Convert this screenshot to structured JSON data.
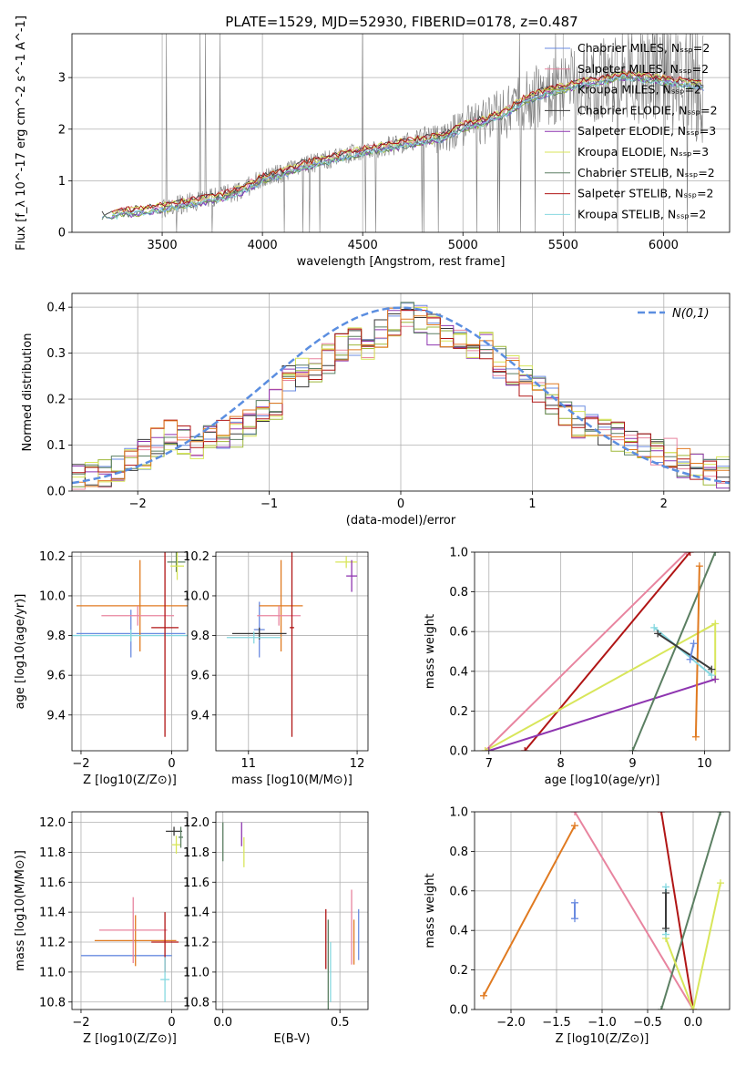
{
  "figure_title": "PLATE=1529, MJD=52930, FIBERID=0178, z=0.487",
  "colors": {
    "chabrier_miles": "#6a8be0",
    "salpeter_miles": "#e8849f",
    "kroupa_miles": "#9fb83a",
    "chabrier_elodie": "#3a3a3a",
    "salpeter_elodie": "#8e35b0",
    "kroupa_elodie": "#d8e65a",
    "chabrier_stelib": "#5b7f62",
    "salpeter_stelib": "#b01515",
    "kroupa_stelib": "#86d8e0",
    "orange_fit": "#e07a20",
    "gaussian": "#5b8ee0",
    "grid": "#b0b0b0",
    "observed": "#7a7a7a"
  },
  "chart_data": [
    {
      "id": "spectrum",
      "type": "line",
      "xlabel": "wavelength [Angstrom, rest frame]",
      "ylabel": "Flux [f_λ 10^-17 erg cm^-2 s^-1 A^-1]",
      "xlim": [
        3050,
        6330
      ],
      "ylim": [
        0,
        3.85
      ],
      "xticks": [
        3500,
        4000,
        4500,
        5000,
        5500,
        6000
      ],
      "yticks": [
        0,
        1,
        2,
        3
      ],
      "legend_position": "top-right",
      "legend": [
        {
          "label": "Chabrier MILES, N_SSP=2",
          "color_key": "chabrier_miles"
        },
        {
          "label": "Salpeter MILES, N_SSP=2",
          "color_key": "salpeter_miles"
        },
        {
          "label": "Kroupa MILES, N_SSP=2",
          "color_key": "kroupa_miles"
        },
        {
          "label": "Chabrier ELODIE, N_SSP=2",
          "color_key": "chabrier_elodie"
        },
        {
          "label": "Salpeter ELODIE, N_SSP=3",
          "color_key": "salpeter_elodie"
        },
        {
          "label": "Kroupa ELODIE, N_SSP=3",
          "color_key": "kroupa_elodie"
        },
        {
          "label": "Chabrier STELIB, N_SSP=2",
          "color_key": "chabrier_stelib"
        },
        {
          "label": "Salpeter STELIB, N_SSP=2",
          "color_key": "salpeter_stelib"
        },
        {
          "label": "Kroupa STELIB, N_SSP=2",
          "color_key": "kroupa_stelib"
        }
      ],
      "model_continuum": {
        "x": [
          3200,
          3300,
          3400,
          3500,
          3600,
          3700,
          3800,
          3900,
          4000,
          4100,
          4200,
          4300,
          4400,
          4500,
          4600,
          4700,
          4800,
          4900,
          5000,
          5100,
          5200,
          5300,
          5400,
          5500,
          5600,
          5700,
          5800,
          5900,
          6000,
          6100,
          6200
        ],
        "y": [
          0.33,
          0.38,
          0.42,
          0.48,
          0.55,
          0.62,
          0.7,
          0.82,
          1.05,
          1.15,
          1.3,
          1.38,
          1.48,
          1.58,
          1.65,
          1.72,
          1.78,
          1.85,
          2.05,
          2.15,
          2.3,
          2.55,
          2.7,
          2.8,
          2.9,
          2.95,
          3.05,
          3.0,
          2.95,
          2.9,
          2.85
        ]
      },
      "observed_range": [
        3500,
        6200
      ]
    },
    {
      "id": "residuals",
      "type": "histogram",
      "xlabel": "(data-model)/error",
      "ylabel": "Normed distribution",
      "xlim": [
        -2.5,
        2.5
      ],
      "ylim": [
        0,
        0.43
      ],
      "xticks": [
        -2,
        -1,
        0,
        1,
        2
      ],
      "yticks": [
        0.0,
        0.1,
        0.2,
        0.3,
        0.4
      ],
      "legend": [
        {
          "label": "N(0,1)",
          "color_key": "gaussian",
          "style": "dashed"
        }
      ],
      "legend_position": "top-right",
      "bins": [
        -2.5,
        -2.4,
        -2.3,
        -2.2,
        -2.1,
        -2.0,
        -1.9,
        -1.8,
        -1.7,
        -1.6,
        -1.5,
        -1.4,
        -1.3,
        -1.2,
        -1.1,
        -1.0,
        -0.9,
        -0.8,
        -0.7,
        -0.6,
        -0.5,
        -0.4,
        -0.3,
        -0.2,
        -0.1,
        0.0,
        0.1,
        0.2,
        0.3,
        0.4,
        0.5,
        0.6,
        0.7,
        0.8,
        0.9,
        1.0,
        1.1,
        1.2,
        1.3,
        1.4,
        1.5,
        1.6,
        1.7,
        1.8,
        1.9,
        2.0,
        2.1,
        2.2,
        2.3,
        2.4,
        2.5
      ],
      "base_heights": [
        0.025,
        0.03,
        0.04,
        0.05,
        0.06,
        0.08,
        0.11,
        0.12,
        0.11,
        0.1,
        0.11,
        0.12,
        0.13,
        0.15,
        0.17,
        0.19,
        0.24,
        0.26,
        0.27,
        0.29,
        0.31,
        0.32,
        0.32,
        0.34,
        0.37,
        0.38,
        0.37,
        0.35,
        0.34,
        0.33,
        0.32,
        0.31,
        0.28,
        0.26,
        0.24,
        0.22,
        0.2,
        0.17,
        0.15,
        0.14,
        0.13,
        0.12,
        0.11,
        0.1,
        0.09,
        0.08,
        0.06,
        0.05,
        0.045,
        0.04
      ]
    },
    {
      "id": "age_vs_Z",
      "type": "errorbar",
      "xlabel": "Z [log10(Z/Z⊙)]",
      "ylabel": "age  [log10(age/yr)]",
      "xlim": [
        -2.2,
        0.35
      ],
      "ylim": [
        9.22,
        10.22
      ],
      "xticks": [
        -2,
        0
      ],
      "yticks": [
        9.4,
        9.6,
        9.8,
        10.0,
        10.2
      ],
      "points": [
        {
          "x": -0.9,
          "xerr": 1.2,
          "y": 9.81,
          "yerr": 0.12,
          "color_key": "chabrier_miles"
        },
        {
          "x": -0.7,
          "xerr": 1.4,
          "y": 9.95,
          "yerr": 0.23,
          "color_key": "orange_fit"
        },
        {
          "x": -0.75,
          "xerr": 0.8,
          "y": 9.9,
          "yerr": 0.05,
          "color_key": "salpeter_miles"
        },
        {
          "x": -0.9,
          "xerr": 1.3,
          "y": 9.8,
          "yerr": 0.03,
          "color_key": "kroupa_stelib"
        },
        {
          "x": -0.15,
          "xerr": 0.3,
          "y": 9.84,
          "yerr": 0.55,
          "color_key": "salpeter_stelib"
        },
        {
          "x": 0.1,
          "xerr": 0.2,
          "y": 10.17,
          "yerr": 0.05,
          "color_key": "chabrier_stelib"
        },
        {
          "x": 0.12,
          "xerr": 0.15,
          "y": 10.15,
          "yerr": 0.07,
          "color_key": "kroupa_elodie"
        }
      ]
    },
    {
      "id": "age_vs_mass",
      "type": "errorbar",
      "xlabel": "mass [log10(M/M⊙)]",
      "ylabel": "",
      "xlim": [
        10.7,
        12.1
      ],
      "ylim": [
        9.22,
        10.22
      ],
      "xticks": [
        11,
        12
      ],
      "yticks": [
        9.4,
        9.6,
        9.8,
        10.0,
        10.2
      ],
      "points": [
        {
          "x": 11.1,
          "xerr": 0.05,
          "y": 9.83,
          "yerr": 0.14,
          "color_key": "chabrier_miles"
        },
        {
          "x": 11.3,
          "xerr": 0.2,
          "y": 9.95,
          "yerr": 0.23,
          "color_key": "orange_fit"
        },
        {
          "x": 11.28,
          "xerr": 0.2,
          "y": 9.9,
          "yerr": 0.05,
          "color_key": "salpeter_miles"
        },
        {
          "x": 11.1,
          "xerr": 0.25,
          "y": 9.81,
          "yerr": 0.03,
          "color_key": "chabrier_elodie"
        },
        {
          "x": 11.05,
          "xerr": 0.25,
          "y": 9.79,
          "yerr": 0.03,
          "color_key": "kroupa_stelib"
        },
        {
          "x": 11.4,
          "xerr": 0.02,
          "y": 9.84,
          "yerr": 0.55,
          "color_key": "salpeter_stelib"
        },
        {
          "x": 11.9,
          "xerr": 0.1,
          "y": 10.17,
          "yerr": 0.03,
          "color_key": "kroupa_elodie"
        },
        {
          "x": 11.95,
          "xerr": 0.05,
          "y": 10.1,
          "yerr": 0.08,
          "color_key": "salpeter_elodie"
        }
      ]
    },
    {
      "id": "weight_vs_age",
      "type": "line",
      "xlabel": "age  [log10(age/yr)]",
      "ylabel": "mass weight",
      "xlim": [
        6.8,
        10.35
      ],
      "ylim": [
        0,
        1.0
      ],
      "xticks": [
        7,
        8,
        9,
        10
      ],
      "yticks": [
        0.0,
        0.2,
        0.4,
        0.6,
        0.8,
        1.0
      ],
      "series": [
        {
          "color_key": "salpeter_miles",
          "x": [
            6.95,
            9.75
          ],
          "y": [
            0.0,
            1.0
          ]
        },
        {
          "color_key": "salpeter_stelib",
          "x": [
            7.5,
            9.8
          ],
          "y": [
            0.0,
            1.0
          ]
        },
        {
          "color_key": "kroupa_elodie",
          "x": [
            6.95,
            10.15,
            10.15
          ],
          "y": [
            0.0,
            0.64,
            0.36
          ]
        },
        {
          "color_key": "salpeter_elodie",
          "x": [
            7.0,
            10.15
          ],
          "y": [
            0.0,
            0.36
          ]
        },
        {
          "color_key": "chabrier_stelib",
          "x": [
            9.0,
            10.15
          ],
          "y": [
            0.0,
            1.0
          ]
        },
        {
          "color_key": "orange_fit",
          "x": [
            9.88,
            9.93
          ],
          "y": [
            0.07,
            0.93
          ]
        },
        {
          "color_key": "kroupa_stelib",
          "x": [
            9.3,
            10.1
          ],
          "y": [
            0.62,
            0.38
          ]
        },
        {
          "color_key": "chabrier_elodie",
          "x": [
            9.35,
            10.1
          ],
          "y": [
            0.59,
            0.41
          ]
        },
        {
          "color_key": "chabrier_miles",
          "x": [
            9.8,
            9.85
          ],
          "y": [
            0.46,
            0.54
          ]
        }
      ]
    },
    {
      "id": "mass_vs_Z",
      "type": "errorbar",
      "xlabel": "Z [log10(Z/Z⊙)]",
      "ylabel": "mass [log10(M/M⊙)]",
      "xlim": [
        -2.2,
        0.35
      ],
      "ylim": [
        10.75,
        12.07
      ],
      "xticks": [
        -2,
        0
      ],
      "yticks": [
        10.8,
        11.0,
        11.2,
        11.4,
        11.6,
        11.8,
        12.0
      ],
      "points": [
        {
          "x": -1.0,
          "xerr": 1.0,
          "y": 11.11,
          "yerr": 0.0,
          "color_key": "chabrier_miles"
        },
        {
          "x": -0.8,
          "xerr": 0.9,
          "y": 11.21,
          "yerr": 0.17,
          "color_key": "orange_fit"
        },
        {
          "x": -0.85,
          "xerr": 0.75,
          "y": 11.28,
          "yerr": 0.22,
          "color_key": "salpeter_miles"
        },
        {
          "x": -0.15,
          "xerr": 0.3,
          "y": 11.2,
          "yerr": 0.2,
          "color_key": "salpeter_stelib"
        },
        {
          "x": -0.15,
          "xerr": 0.1,
          "y": 10.95,
          "yerr": 0.15,
          "color_key": "kroupa_stelib"
        },
        {
          "x": 0.05,
          "xerr": 0.18,
          "y": 11.94,
          "yerr": 0.03,
          "color_key": "chabrier_elodie"
        },
        {
          "x": 0.1,
          "xerr": 0.1,
          "y": 11.85,
          "yerr": 0.06,
          "color_key": "kroupa_elodie"
        },
        {
          "x": 0.2,
          "xerr": 0.05,
          "y": 11.9,
          "yerr": 0.07,
          "color_key": "chabrier_stelib"
        }
      ]
    },
    {
      "id": "mass_vs_ebv",
      "type": "errorbar",
      "xlabel": "E(B-V)",
      "ylabel": "",
      "xlim": [
        -0.03,
        0.62
      ],
      "ylim": [
        10.75,
        12.07
      ],
      "xticks": [
        0.0,
        0.5
      ],
      "yticks": [
        10.8,
        11.0,
        11.2,
        11.4,
        11.6,
        11.8,
        12.0
      ],
      "points": [
        {
          "x": 0.0,
          "xerr": 0.0,
          "y": 11.87,
          "yerr": 0.13,
          "color_key": "chabrier_stelib"
        },
        {
          "x": 0.08,
          "xerr": 0.0,
          "y": 11.92,
          "yerr": 0.08,
          "color_key": "salpeter_elodie"
        },
        {
          "x": 0.09,
          "xerr": 0.0,
          "y": 11.8,
          "yerr": 0.1,
          "color_key": "kroupa_elodie"
        },
        {
          "x": 0.44,
          "xerr": 0.0,
          "y": 11.22,
          "yerr": 0.2,
          "color_key": "salpeter_stelib"
        },
        {
          "x": 0.45,
          "xerr": 0.0,
          "y": 11.05,
          "yerr": 0.3,
          "color_key": "chabrier_stelib"
        },
        {
          "x": 0.46,
          "xerr": 0.0,
          "y": 11.0,
          "yerr": 0.2,
          "color_key": "kroupa_stelib"
        },
        {
          "x": 0.55,
          "xerr": 0.0,
          "y": 11.3,
          "yerr": 0.25,
          "color_key": "salpeter_miles"
        },
        {
          "x": 0.56,
          "xerr": 0.0,
          "y": 11.2,
          "yerr": 0.15,
          "color_key": "orange_fit"
        },
        {
          "x": 0.58,
          "xerr": 0.0,
          "y": 11.25,
          "yerr": 0.17,
          "color_key": "chabrier_miles"
        }
      ]
    },
    {
      "id": "weight_vs_Z",
      "type": "line",
      "xlabel": "Z [log10(Z/Z⊙)]",
      "ylabel": "mass weight",
      "xlim": [
        -2.4,
        0.4
      ],
      "ylim": [
        0,
        1.0
      ],
      "xticks": [
        -2.0,
        -1.5,
        -1.0,
        -0.5,
        0.0
      ],
      "yticks": [
        0.0,
        0.2,
        0.4,
        0.6,
        0.8,
        1.0
      ],
      "series": [
        {
          "color_key": "orange_fit",
          "x": [
            -2.3,
            -1.3
          ],
          "y": [
            0.07,
            0.93
          ]
        },
        {
          "color_key": "salpeter_miles",
          "x": [
            -1.3,
            0.0
          ],
          "y": [
            1.0,
            0.0
          ]
        },
        {
          "color_key": "salpeter_stelib",
          "x": [
            -0.35,
            0.0
          ],
          "y": [
            1.0,
            0.0
          ]
        },
        {
          "color_key": "chabrier_stelib",
          "x": [
            -0.35,
            0.3
          ],
          "y": [
            0.0,
            1.0
          ]
        },
        {
          "color_key": "kroupa_elodie",
          "x": [
            -0.3,
            0.0,
            0.3
          ],
          "y": [
            0.36,
            0.0,
            0.64
          ]
        },
        {
          "color_key": "kroupa_stelib",
          "x": [
            -0.3,
            -0.3
          ],
          "y": [
            0.38,
            0.62
          ]
        },
        {
          "color_key": "chabrier_miles",
          "x": [
            -1.3,
            -1.3
          ],
          "y": [
            0.46,
            0.54
          ]
        },
        {
          "color_key": "chabrier_elodie",
          "x": [
            -0.3,
            -0.3
          ],
          "y": [
            0.41,
            0.59
          ]
        }
      ]
    }
  ]
}
